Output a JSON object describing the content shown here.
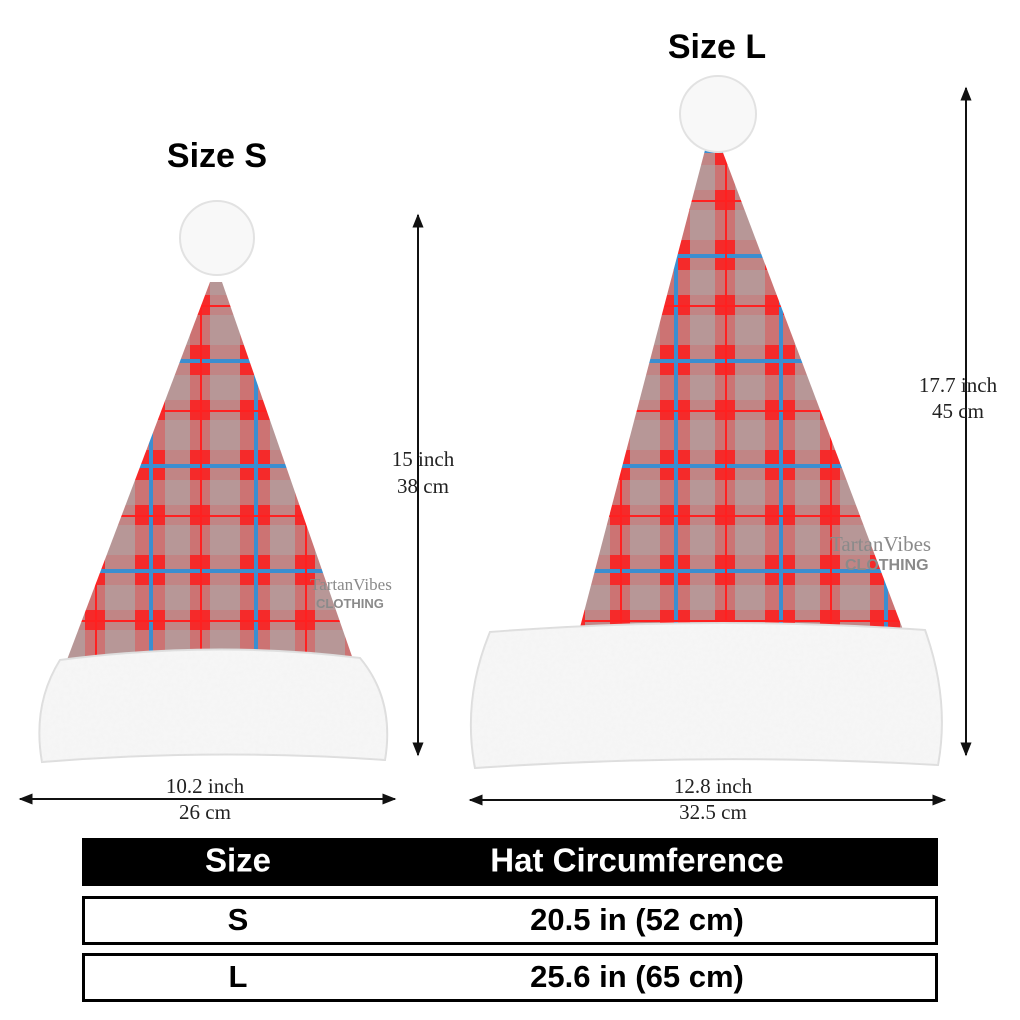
{
  "size_s": {
    "title": "Size S",
    "height_inch": "15 inch",
    "height_cm": "38 cm",
    "width_inch": "10.2 inch",
    "width_cm": "26 cm"
  },
  "size_l": {
    "title": "Size L",
    "height_inch": "17.7 inch",
    "height_cm": "45 cm",
    "width_inch": "12.8 inch",
    "width_cm": "32.5 cm"
  },
  "watermark": {
    "brand": "TartanVibes",
    "sub": "CLOTHING"
  },
  "table": {
    "header": [
      "Size",
      "Hat Circumference"
    ],
    "rows": [
      [
        "S",
        "20.5 in (52 cm)"
      ],
      [
        "L",
        "25.6 in (65 cm)"
      ]
    ]
  }
}
